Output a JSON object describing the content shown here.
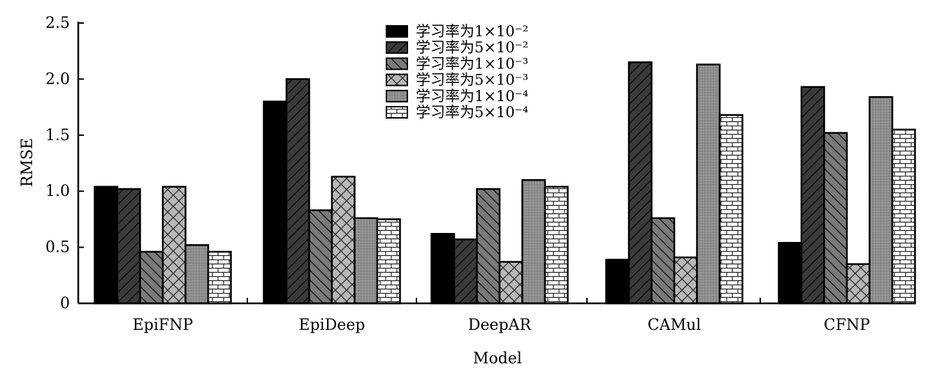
{
  "chart_data": {
    "type": "bar",
    "xlabel": "Model",
    "ylabel": "RMSE",
    "ylim": [
      0,
      2.5
    ],
    "yticks": [
      "0",
      "0.5",
      "1.0",
      "1.5",
      "2.0",
      "2.5"
    ],
    "categories": [
      "EpiFNP",
      "EpiDeep",
      "DeepAR",
      "CAMul",
      "CFNP"
    ],
    "legend_position": "top-center",
    "grid": false,
    "series": [
      {
        "name": "学习率为1×10⁻²",
        "fill": "black",
        "values": [
          1.04,
          1.8,
          0.62,
          0.39,
          0.54
        ]
      },
      {
        "name": "学习率为5×10⁻²",
        "fill": "dark-diagonal-forward",
        "values": [
          1.02,
          2.0,
          0.57,
          2.15,
          1.93
        ]
      },
      {
        "name": "学习率为1×10⁻³",
        "fill": "gray-diagonal-back",
        "values": [
          0.46,
          0.83,
          1.02,
          0.76,
          1.52
        ]
      },
      {
        "name": "学习率为5×10⁻³",
        "fill": "light-crosshatch",
        "values": [
          1.04,
          1.13,
          0.37,
          0.41,
          0.35
        ]
      },
      {
        "name": "学习率为1×10⁻⁴",
        "fill": "gray-dotted",
        "values": [
          0.52,
          0.76,
          1.1,
          2.13,
          1.84
        ]
      },
      {
        "name": "学习率为5×10⁻⁴",
        "fill": "brick",
        "values": [
          0.46,
          0.75,
          1.04,
          1.68,
          1.55
        ]
      }
    ]
  }
}
